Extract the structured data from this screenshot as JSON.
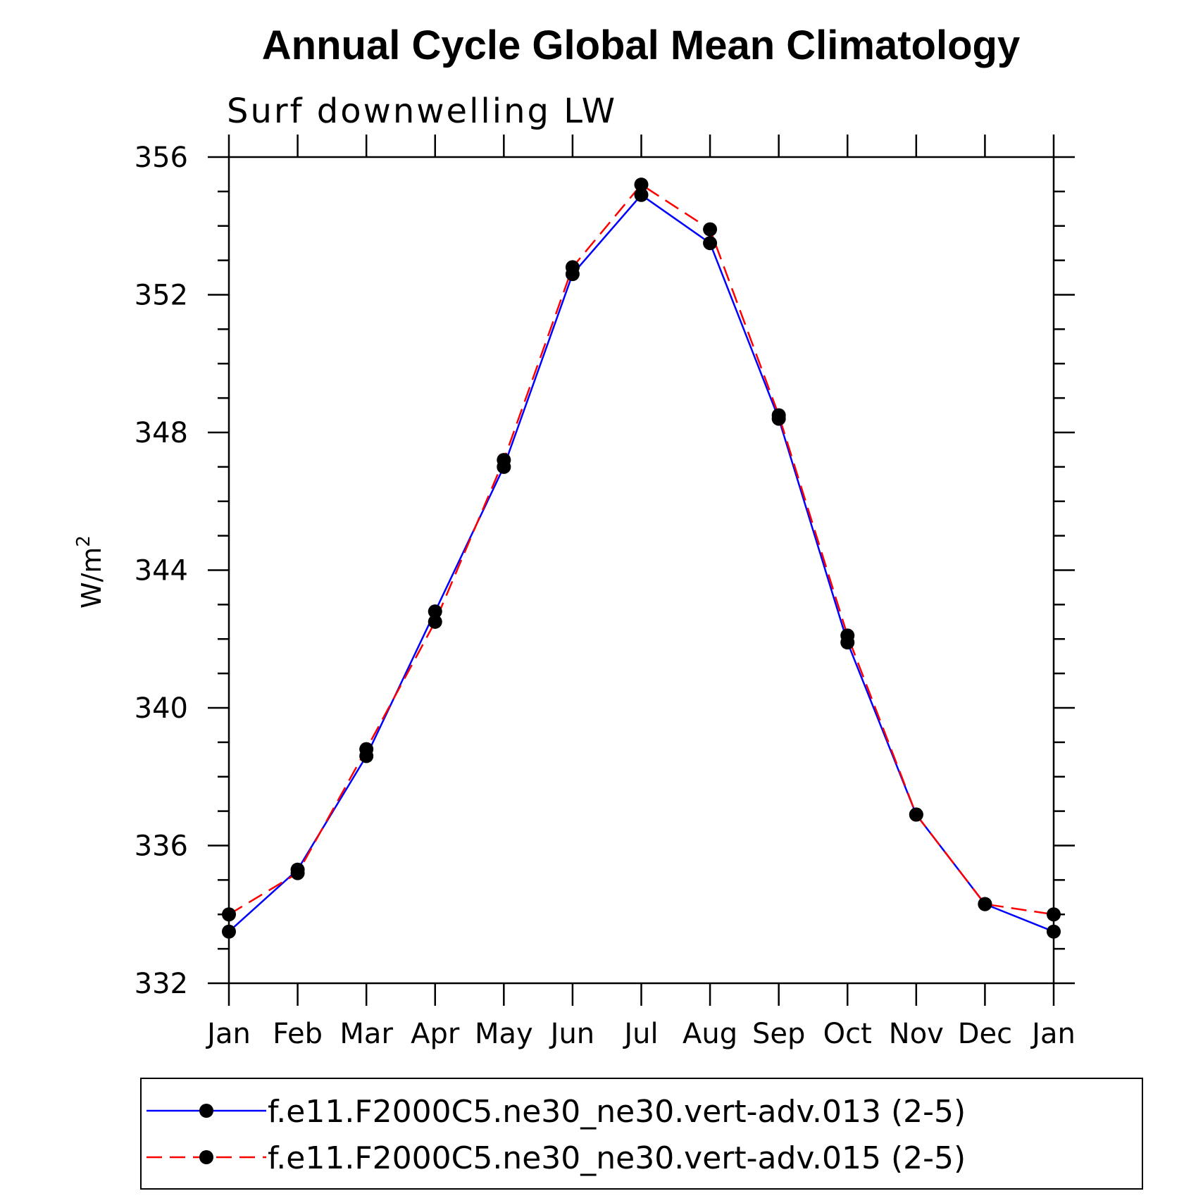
{
  "chart_data": {
    "type": "line",
    "title": "Annual Cycle Global Mean Climatology",
    "subtitle": "Surf downwelling LW",
    "ylabel": "W/m",
    "ylabel_sup": "2",
    "xlabel": "",
    "ylim": [
      332,
      356
    ],
    "yticks": [
      "332",
      "336",
      "340",
      "344",
      "348",
      "352",
      "356"
    ],
    "categories": [
      "Jan",
      "Feb",
      "Mar",
      "Apr",
      "May",
      "Jun",
      "Jul",
      "Aug",
      "Sep",
      "Oct",
      "Nov",
      "Dec",
      "Jan"
    ],
    "grid": false,
    "legend_position": "bottom",
    "series": [
      {
        "name": "f.e11.F2000C5.ne30_ne30.vert-adv.013 (2-5)",
        "color": "#0000ff",
        "dash": "solid",
        "values": [
          333.5,
          335.3,
          338.6,
          342.8,
          347.0,
          352.6,
          354.9,
          353.5,
          348.4,
          341.9,
          336.9,
          334.3,
          333.5
        ]
      },
      {
        "name": "f.e11.F2000C5.ne30_ne30.vert-adv.015 (2-5)",
        "color": "#ff0000",
        "dash": "dashed",
        "values": [
          334.0,
          335.2,
          338.8,
          342.5,
          347.2,
          352.8,
          355.2,
          353.9,
          348.5,
          342.1,
          336.9,
          334.3,
          334.0
        ]
      }
    ]
  }
}
